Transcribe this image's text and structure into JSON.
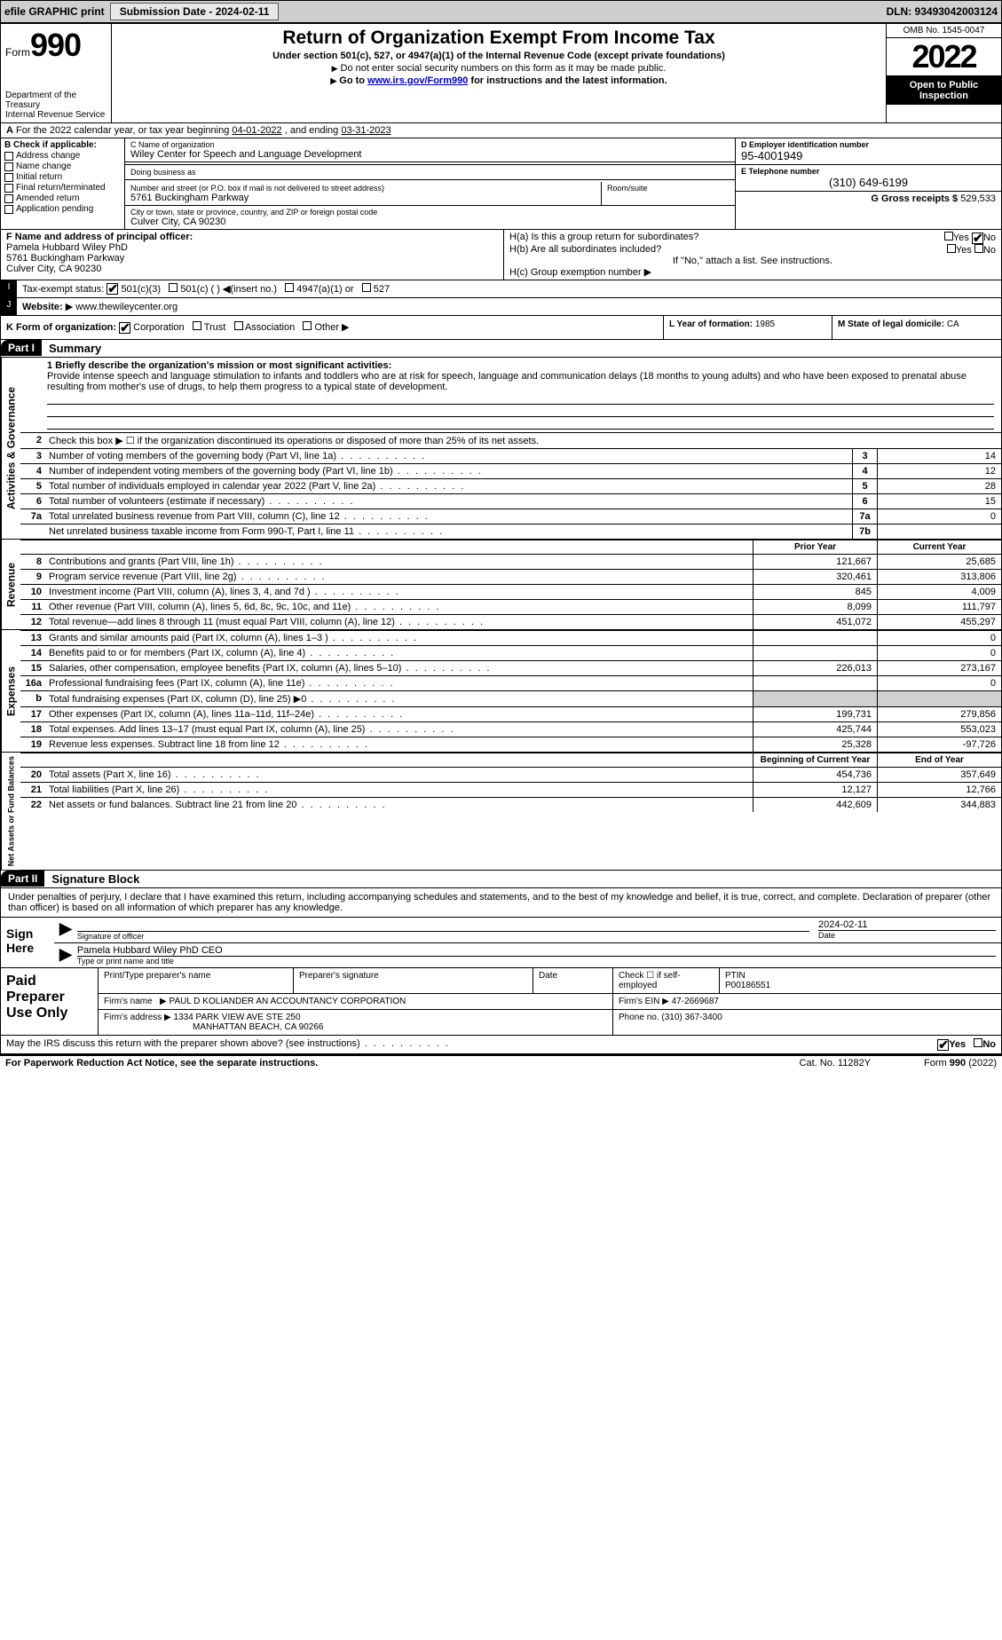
{
  "topbar": {
    "efile": "efile GRAPHIC print",
    "submission": "Submission Date - 2024-02-11",
    "dln": "DLN: 93493042003124"
  },
  "header": {
    "form_prefix": "Form",
    "form_num": "990",
    "dept": "Department of the Treasury",
    "irs": "Internal Revenue Service",
    "title": "Return of Organization Exempt From Income Tax",
    "sub1": "Under section 501(c), 527, or 4947(a)(1) of the Internal Revenue Code (except private foundations)",
    "sub2": "Do not enter social security numbers on this form as it may be made public.",
    "sub3_pre": "Go to ",
    "sub3_link": "www.irs.gov/Form990",
    "sub3_post": " for instructions and the latest information.",
    "omb": "OMB No. 1545-0047",
    "year": "2022",
    "open": "Open to Public Inspection"
  },
  "line_a": {
    "text_pre": "For the 2022 calendar year, or tax year beginning ",
    "begin": "04-01-2022",
    "mid": " , and ending ",
    "end": "03-31-2023"
  },
  "box_b": {
    "label": "B Check if applicable:",
    "items": [
      "Address change",
      "Name change",
      "Initial return",
      "Final return/terminated",
      "Amended return",
      "Application pending"
    ]
  },
  "box_c": {
    "name_lbl": "C Name of organization",
    "name": "Wiley Center for Speech and Language Development",
    "dba_lbl": "Doing business as",
    "addr_lbl": "Number and street (or P.O. box if mail is not delivered to street address)",
    "room_lbl": "Room/suite",
    "addr": "5761 Buckingham Parkway",
    "city_lbl": "City or town, state or province, country, and ZIP or foreign postal code",
    "city": "Culver City, CA  90230"
  },
  "box_d": {
    "lbl": "D Employer identification number",
    "ein": "95-4001949"
  },
  "box_e": {
    "lbl": "E Telephone number",
    "phone": "(310) 649-6199"
  },
  "box_g": {
    "lbl": "G Gross receipts $",
    "val": "529,533"
  },
  "box_f": {
    "lbl": "F Name and address of principal officer:",
    "name": "Pamela Hubbard Wiley PhD",
    "addr1": "5761 Buckingham Parkway",
    "addr2": "Culver City, CA  90230"
  },
  "box_h": {
    "a_lbl": "H(a)  Is this a group return for subordinates?",
    "b_lbl": "H(b)  Are all subordinates included?",
    "b_note": "If \"No,\" attach a list. See instructions.",
    "c_lbl": "H(c)  Group exemption number",
    "yes": "Yes",
    "no": "No"
  },
  "box_i": {
    "lbl": "Tax-exempt status:",
    "opts": [
      "501(c)(3)",
      "501(c) (  )",
      "(insert no.)",
      "4947(a)(1) or",
      "527"
    ]
  },
  "box_j": {
    "lbl": "Website:",
    "val": "www.thewileycenter.org"
  },
  "box_k": {
    "lbl": "K Form of organization:",
    "opts": [
      "Corporation",
      "Trust",
      "Association",
      "Other"
    ]
  },
  "box_l": {
    "lbl": "L Year of formation:",
    "val": "1985"
  },
  "box_m": {
    "lbl": "M State of legal domicile:",
    "val": "CA"
  },
  "part1": {
    "num": "Part I",
    "title": "Summary"
  },
  "p1": {
    "l1_lbl": "1 Briefly describe the organization's mission or most significant activities:",
    "l1_text": "Provide intense speech and language stimulation to infants and toddlers who are at risk for speech, language and communication delays (18 months to young adults) and who have been exposed to prenatal abuse resulting from mother's use of drugs, to help them progress to a typical state of development.",
    "l2": "Check this box ▶ ☐  if the organization discontinued its operations or disposed of more than 25% of its net assets.",
    "rows_top": [
      {
        "n": "3",
        "t": "Number of voting members of the governing body (Part VI, line 1a)",
        "b": "3",
        "v": "14"
      },
      {
        "n": "4",
        "t": "Number of independent voting members of the governing body (Part VI, line 1b)",
        "b": "4",
        "v": "12"
      },
      {
        "n": "5",
        "t": "Total number of individuals employed in calendar year 2022 (Part V, line 2a)",
        "b": "5",
        "v": "28"
      },
      {
        "n": "6",
        "t": "Total number of volunteers (estimate if necessary)",
        "b": "6",
        "v": "15"
      },
      {
        "n": "7a",
        "t": "Total unrelated business revenue from Part VIII, column (C), line 12",
        "b": "7a",
        "v": "0"
      },
      {
        "n": "",
        "t": "Net unrelated business taxable income from Form 990-T, Part I, line 11",
        "b": "7b",
        "v": ""
      }
    ],
    "hdr_prior": "Prior Year",
    "hdr_curr": "Current Year",
    "revenue": [
      {
        "n": "8",
        "t": "Contributions and grants (Part VIII, line 1h)",
        "p": "121,667",
        "c": "25,685"
      },
      {
        "n": "9",
        "t": "Program service revenue (Part VIII, line 2g)",
        "p": "320,461",
        "c": "313,806"
      },
      {
        "n": "10",
        "t": "Investment income (Part VIII, column (A), lines 3, 4, and 7d )",
        "p": "845",
        "c": "4,009"
      },
      {
        "n": "11",
        "t": "Other revenue (Part VIII, column (A), lines 5, 6d, 8c, 9c, 10c, and 11e)",
        "p": "8,099",
        "c": "111,797"
      },
      {
        "n": "12",
        "t": "Total revenue—add lines 8 through 11 (must equal Part VIII, column (A), line 12)",
        "p": "451,072",
        "c": "455,297"
      }
    ],
    "expenses": [
      {
        "n": "13",
        "t": "Grants and similar amounts paid (Part IX, column (A), lines 1–3 )",
        "p": "",
        "c": "0"
      },
      {
        "n": "14",
        "t": "Benefits paid to or for members (Part IX, column (A), line 4)",
        "p": "",
        "c": "0"
      },
      {
        "n": "15",
        "t": "Salaries, other compensation, employee benefits (Part IX, column (A), lines 5–10)",
        "p": "226,013",
        "c": "273,167"
      },
      {
        "n": "16a",
        "t": "Professional fundraising fees (Part IX, column (A), line 11e)",
        "p": "",
        "c": "0"
      },
      {
        "n": "b",
        "t": "Total fundraising expenses (Part IX, column (D), line 25) ▶0",
        "p": "GRAY",
        "c": "GRAY"
      },
      {
        "n": "17",
        "t": "Other expenses (Part IX, column (A), lines 11a–11d, 11f–24e)",
        "p": "199,731",
        "c": "279,856"
      },
      {
        "n": "18",
        "t": "Total expenses. Add lines 13–17 (must equal Part IX, column (A), line 25)",
        "p": "425,744",
        "c": "553,023"
      },
      {
        "n": "19",
        "t": "Revenue less expenses. Subtract line 18 from line 12",
        "p": "25,328",
        "c": "-97,726"
      }
    ],
    "hdr_beg": "Beginning of Current Year",
    "hdr_end": "End of Year",
    "netassets": [
      {
        "n": "20",
        "t": "Total assets (Part X, line 16)",
        "p": "454,736",
        "c": "357,649"
      },
      {
        "n": "21",
        "t": "Total liabilities (Part X, line 26)",
        "p": "12,127",
        "c": "12,766"
      },
      {
        "n": "22",
        "t": "Net assets or fund balances. Subtract line 21 from line 20",
        "p": "442,609",
        "c": "344,883"
      }
    ]
  },
  "side_labels": {
    "ag": "Activities & Governance",
    "rev": "Revenue",
    "exp": "Expenses",
    "na": "Net Assets or Fund Balances"
  },
  "part2": {
    "num": "Part II",
    "title": "Signature Block"
  },
  "sig": {
    "decl": "Under penalties of perjury, I declare that I have examined this return, including accompanying schedules and statements, and to the best of my knowledge and belief, it is true, correct, and complete. Declaration of preparer (other than officer) is based on all information of which preparer has any knowledge.",
    "sign_here": "Sign Here",
    "sig_officer": "Signature of officer",
    "date_lbl": "Date",
    "date": "2024-02-11",
    "officer_name": "Pamela Hubbard Wiley PhD CEO",
    "officer_lbl": "Type or print name and title"
  },
  "prep": {
    "paid": "Paid Preparer Use Only",
    "h1": "Print/Type preparer's name",
    "h2": "Preparer's signature",
    "h3": "Date",
    "h4": "Check ☐ if self-employed",
    "h5": "PTIN",
    "ptin": "P00186551",
    "firm_lbl": "Firm's name",
    "firm": "PAUL D KOLIANDER AN ACCOUNTANCY CORPORATION",
    "ein_lbl": "Firm's EIN",
    "ein": "47-2669687",
    "addr_lbl": "Firm's address",
    "addr1": "1334 PARK VIEW AVE STE 250",
    "addr2": "MANHATTAN BEACH, CA  90266",
    "phone_lbl": "Phone no.",
    "phone": "(310) 367-3400"
  },
  "discuss": "May the IRS discuss this return with the preparer shown above? (see instructions)",
  "footer": {
    "pra": "For Paperwork Reduction Act Notice, see the separate instructions.",
    "cat": "Cat. No. 11282Y",
    "form": "Form 990 (2022)"
  }
}
